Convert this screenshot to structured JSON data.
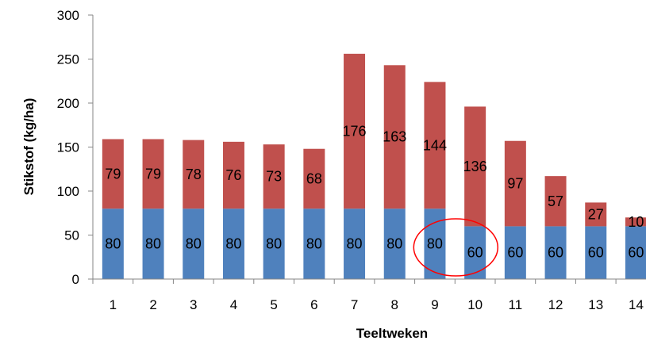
{
  "chart_data": {
    "type": "bar",
    "stacked": true,
    "categories": [
      "1",
      "2",
      "3",
      "4",
      "5",
      "6",
      "7",
      "8",
      "9",
      "10",
      "11",
      "12",
      "13",
      "14"
    ],
    "series": [
      {
        "values": [
          80,
          80,
          80,
          80,
          80,
          80,
          80,
          80,
          80,
          60,
          60,
          60,
          60,
          60
        ],
        "color": "#4F81BD"
      },
      {
        "values": [
          79,
          79,
          78,
          76,
          73,
          68,
          176,
          163,
          144,
          136,
          97,
          57,
          27,
          10
        ],
        "color": "#C0504D"
      }
    ],
    "xlabel": "Teeltweken",
    "ylabel": "Stikstof (kg/ha)",
    "ylim": [
      0,
      300
    ],
    "yticks": [
      0,
      50,
      100,
      150,
      200,
      250,
      300
    ],
    "grid": false,
    "legend": "none",
    "annotation": {
      "shape": "ellipse",
      "color": "#FF0000",
      "target_categories": [
        "9",
        "10"
      ]
    }
  }
}
